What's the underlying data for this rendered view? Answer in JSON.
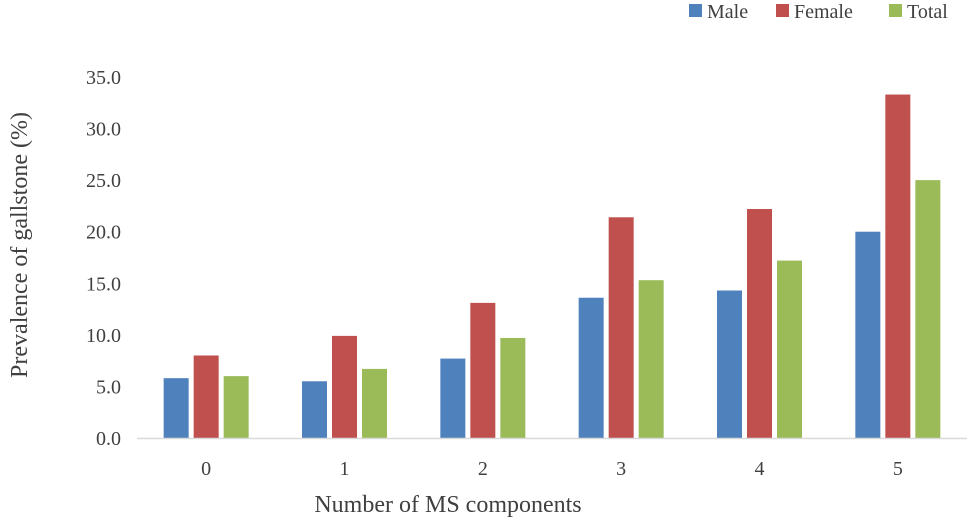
{
  "chart_data": {
    "type": "bar",
    "title": "",
    "xlabel": "Number of MS components",
    "ylabel": "Prevalence of gallstone (%)",
    "categories": [
      "0",
      "1",
      "2",
      "3",
      "4",
      "5"
    ],
    "ylim": [
      0,
      35
    ],
    "yticks": [
      "0.0",
      "5.0",
      "10.0",
      "15.0",
      "20.0",
      "25.0",
      "30.0",
      "35.0"
    ],
    "grid": false,
    "legend_position": "top-right",
    "series": [
      {
        "name": "Male",
        "color": "#4f81bd",
        "values": [
          5.8,
          5.5,
          7.7,
          13.6,
          14.3,
          20.0
        ]
      },
      {
        "name": "Female",
        "color": "#c0504d",
        "values": [
          8.0,
          9.9,
          13.1,
          21.4,
          22.2,
          33.3
        ]
      },
      {
        "name": "Total",
        "color": "#9bbb59",
        "values": [
          6.0,
          6.7,
          9.7,
          15.3,
          17.2,
          25.0
        ]
      }
    ]
  }
}
